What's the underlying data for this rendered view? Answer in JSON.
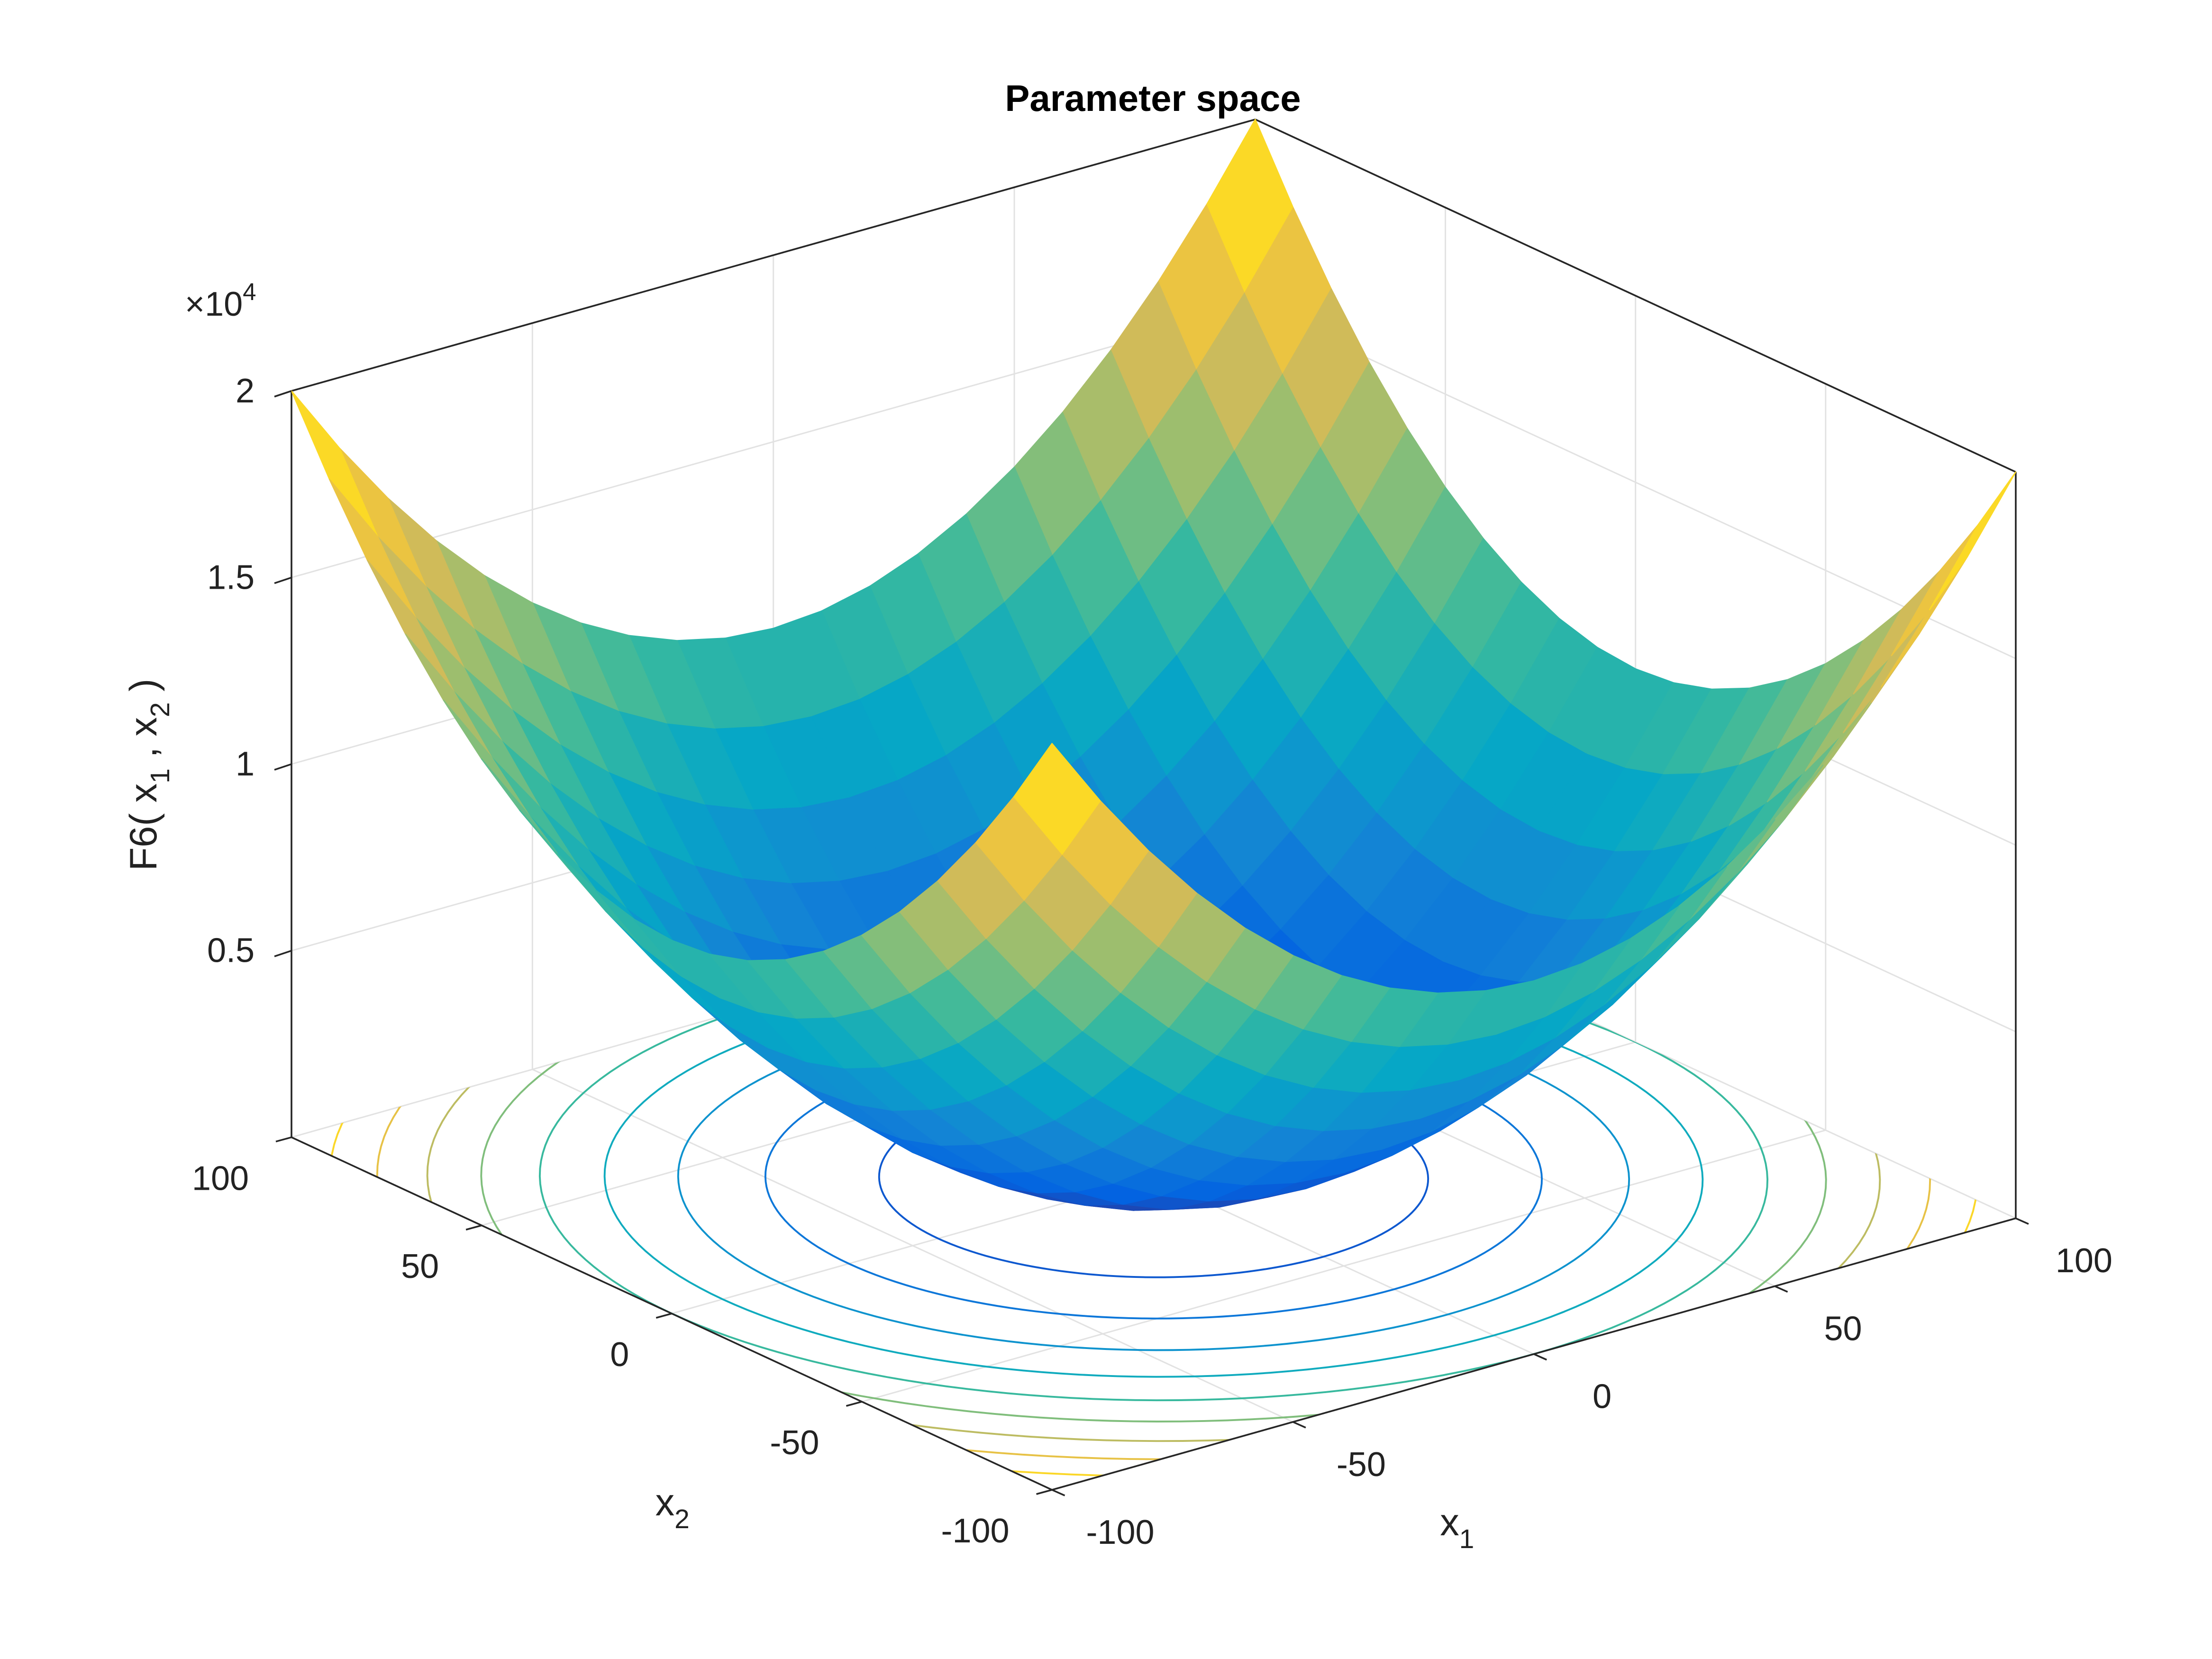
{
  "chart_data": {
    "type": "surface",
    "title": "Parameter space",
    "xlabel": {
      "text": "x",
      "sub": "1"
    },
    "ylabel": {
      "text": "x",
      "sub": "2"
    },
    "zlabel": [
      {
        "text": "F6( x"
      },
      {
        "sub": "1"
      },
      {
        "text": " , x"
      },
      {
        "sub": "2"
      },
      {
        "text": " )"
      }
    ],
    "zscale": {
      "base": "×10",
      "exponent": "4"
    },
    "xlim": [
      -100,
      100
    ],
    "ylim": [
      -100,
      100
    ],
    "zlim": [
      0,
      20000
    ],
    "xticks": [
      -100,
      -50,
      0,
      50,
      100
    ],
    "yticks": [
      -100,
      -50,
      0,
      50,
      100
    ],
    "zticks": [
      {
        "value": 5000,
        "label": "0.5"
      },
      {
        "value": 10000,
        "label": "1"
      },
      {
        "value": 15000,
        "label": "1.5"
      },
      {
        "value": 20000,
        "label": "2"
      }
    ],
    "grid": true,
    "colormap": [
      "#352a87",
      "#0363e1",
      "#1485d4",
      "#06a7c6",
      "#38b99e",
      "#92bf73",
      "#d9ba56",
      "#fcce2e",
      "#f9fb0e"
    ],
    "contour_levels": [
      2000,
      4000,
      6000,
      8000,
      10000,
      12000,
      14000,
      16000,
      18000
    ],
    "x": [
      -100,
      -90,
      -80,
      -70,
      -60,
      -50,
      -40,
      -30,
      -20,
      -10,
      0,
      10,
      20,
      30,
      40,
      50,
      60,
      70,
      80,
      90,
      100
    ],
    "y": [
      -100,
      -90,
      -80,
      -70,
      -60,
      -50,
      -40,
      -30,
      -20,
      -10,
      0,
      10,
      20,
      30,
      40,
      50,
      60,
      70,
      80,
      90,
      100
    ],
    "z": [
      [
        20000,
        18100,
        16400,
        14900,
        13600,
        12500,
        11600,
        10900,
        10400,
        10100,
        10000,
        10100,
        10400,
        10900,
        11600,
        12500,
        13600,
        14900,
        16400,
        18100,
        20000
      ],
      [
        18100,
        16200,
        14500,
        13000,
        11700,
        10600,
        9700,
        9000,
        8500,
        8200,
        8100,
        8200,
        8500,
        9000,
        9700,
        10600,
        11700,
        13000,
        14500,
        16200,
        18100
      ],
      [
        16400,
        14500,
        12800,
        11300,
        10000,
        8900,
        8000,
        7300,
        6800,
        6500,
        6400,
        6500,
        6800,
        7300,
        8000,
        8900,
        10000,
        11300,
        12800,
        14500,
        16400
      ],
      [
        14900,
        13000,
        11300,
        9800,
        8500,
        7400,
        6500,
        5800,
        5300,
        5000,
        4900,
        5000,
        5300,
        5800,
        6500,
        7400,
        8500,
        9800,
        11300,
        13000,
        14900
      ],
      [
        13600,
        11700,
        10000,
        8500,
        7200,
        6100,
        5200,
        4500,
        4000,
        3700,
        3600,
        3700,
        4000,
        4500,
        5200,
        6100,
        7200,
        8500,
        10000,
        11700,
        13600
      ],
      [
        12500,
        10600,
        8900,
        7400,
        6100,
        5000,
        4100,
        3400,
        2900,
        2600,
        2500,
        2600,
        2900,
        3400,
        4100,
        5000,
        6100,
        7400,
        8900,
        10600,
        12500
      ],
      [
        11600,
        9700,
        8000,
        6500,
        5200,
        4100,
        3200,
        2500,
        2000,
        1700,
        1600,
        1700,
        2000,
        2500,
        3200,
        4100,
        5200,
        6500,
        8000,
        9700,
        11600
      ],
      [
        10900,
        9000,
        7300,
        5800,
        4500,
        3400,
        2500,
        1800,
        1300,
        1000,
        900,
        1000,
        1300,
        1800,
        2500,
        3400,
        4500,
        5800,
        7300,
        9000,
        10900
      ],
      [
        10400,
        8500,
        6800,
        5300,
        4000,
        2900,
        2000,
        1300,
        800,
        500,
        400,
        500,
        800,
        1300,
        2000,
        2900,
        4000,
        5300,
        6800,
        8500,
        10400
      ],
      [
        10100,
        8200,
        6500,
        5000,
        3700,
        2600,
        1700,
        1000,
        500,
        200,
        100,
        200,
        500,
        1000,
        1700,
        2600,
        3700,
        5000,
        6500,
        8200,
        10100
      ],
      [
        10000,
        8100,
        6400,
        4900,
        3600,
        2500,
        1600,
        900,
        400,
        100,
        0,
        100,
        400,
        900,
        1600,
        2500,
        3600,
        4900,
        6400,
        8100,
        10000
      ],
      [
        10100,
        8200,
        6500,
        5000,
        3700,
        2600,
        1700,
        1000,
        500,
        200,
        100,
        200,
        500,
        1000,
        1700,
        2600,
        3700,
        5000,
        6500,
        8200,
        10100
      ],
      [
        10400,
        8500,
        6800,
        5300,
        4000,
        2900,
        2000,
        1300,
        800,
        500,
        400,
        500,
        800,
        1300,
        2000,
        2900,
        4000,
        5300,
        6800,
        8500,
        10400
      ],
      [
        10900,
        9000,
        7300,
        5800,
        4500,
        3400,
        2500,
        1800,
        1300,
        1000,
        900,
        1000,
        1300,
        1800,
        2500,
        3400,
        4500,
        5800,
        7300,
        9000,
        10900
      ],
      [
        11600,
        9700,
        8000,
        6500,
        5200,
        4100,
        3200,
        2500,
        2000,
        1700,
        1600,
        1700,
        2000,
        2500,
        3200,
        4100,
        5200,
        6500,
        8000,
        9700,
        11600
      ],
      [
        12500,
        10600,
        8900,
        7400,
        6100,
        5000,
        4100,
        3400,
        2900,
        2600,
        2500,
        2600,
        2900,
        3400,
        4100,
        5000,
        6100,
        7400,
        8900,
        10600,
        12500
      ],
      [
        13600,
        11700,
        10000,
        8500,
        7200,
        6100,
        5200,
        4500,
        4000,
        3700,
        3600,
        3700,
        4000,
        4500,
        5200,
        6100,
        7200,
        8500,
        10000,
        11700,
        13600
      ],
      [
        14900,
        13000,
        11300,
        9800,
        8500,
        7400,
        6500,
        5800,
        5300,
        5000,
        4900,
        5000,
        5300,
        5800,
        6500,
        7400,
        8500,
        9800,
        11300,
        13000,
        14900
      ],
      [
        16400,
        14500,
        12800,
        11300,
        10000,
        8900,
        8000,
        7300,
        6800,
        6500,
        6400,
        6500,
        6800,
        7300,
        8000,
        8900,
        10000,
        11300,
        12800,
        14500,
        16400
      ],
      [
        18100,
        16200,
        14500,
        13000,
        11700,
        10600,
        9700,
        9000,
        8500,
        8200,
        8100,
        8200,
        8500,
        9000,
        9700,
        10600,
        11700,
        13000,
        14500,
        16200,
        18100
      ],
      [
        20000,
        18100,
        16400,
        14900,
        13600,
        12500,
        11600,
        10900,
        10400,
        10100,
        10000,
        10100,
        10400,
        10900,
        11600,
        12500,
        13600,
        14900,
        16400,
        18100,
        20000
      ]
    ]
  }
}
